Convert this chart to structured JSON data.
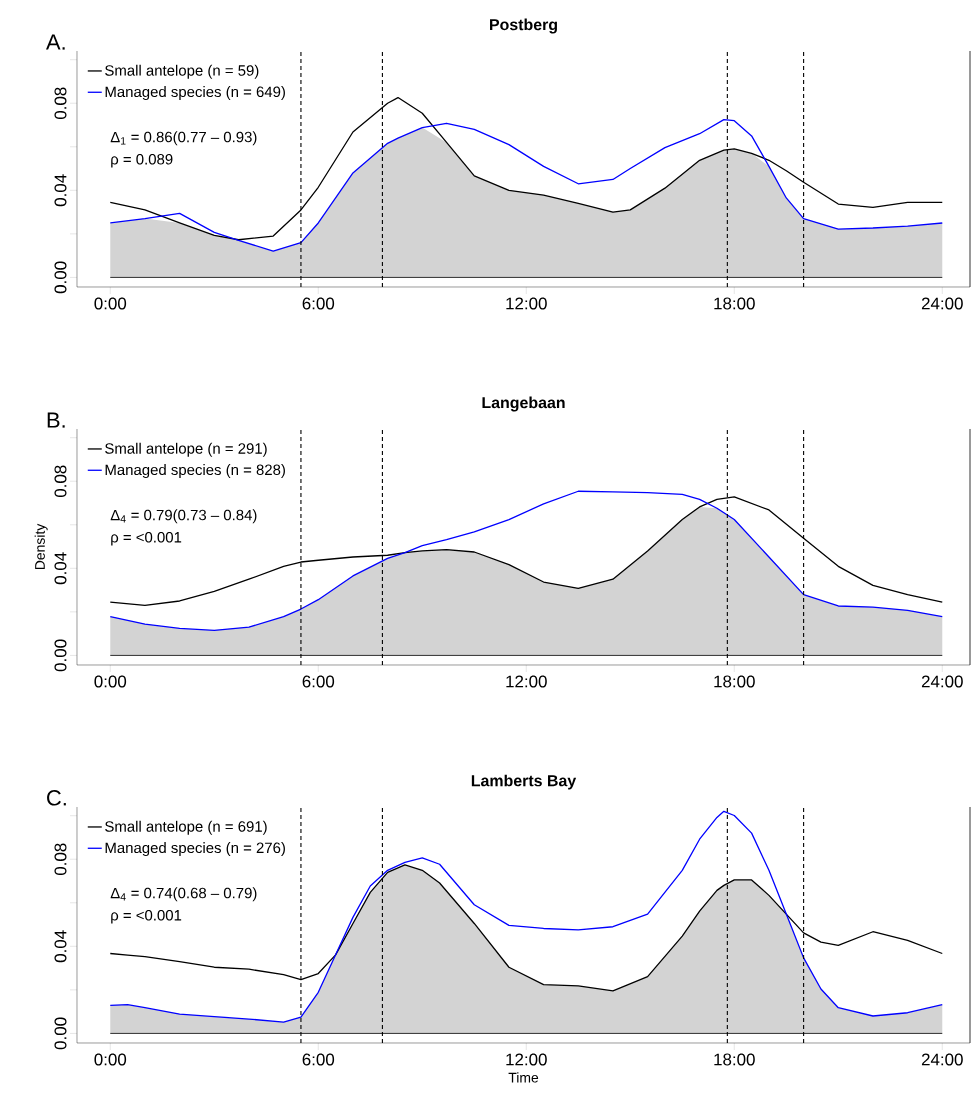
{
  "chart_data": [
    {
      "type": "line",
      "title": "Postberg",
      "annotations": [
        "A.",
        "Δ$_{1}$ = 0.86(0.77 – 0.93)",
        "ρ = 0.089"
      ],
      "legend": "top left",
      "xlim": [
        -0.96,
        24.8
      ],
      "ylim": [
        -0.0044,
        0.104
      ],
      "xticks": [
        {
          "value": 0,
          "label": "0:00"
        },
        {
          "value": 6,
          "label": "6:00"
        },
        {
          "value": 12,
          "label": "12:00"
        },
        {
          "value": 18,
          "label": "18:00"
        },
        {
          "value": 24,
          "label": "24:00"
        }
      ],
      "yticks": [
        {
          "value": 0,
          "label": "0.00"
        },
        {
          "value": 0.02,
          "label": null
        },
        {
          "value": 0.04,
          "label": "0.04"
        },
        {
          "value": 0.06,
          "label": null
        },
        {
          "value": 0.08,
          "label": "0.08"
        },
        {
          "value": 0.1,
          "label": null
        }
      ],
      "ref_lines": [
        {
          "axis": "y",
          "value": 0,
          "color": "#000000",
          "line_style": "solid"
        },
        {
          "axis": "x",
          "value": 5.5,
          "color": "#000000",
          "line_style": "dashed"
        },
        {
          "axis": "x",
          "value": 7.85,
          "color": "#000000",
          "line_style": "dashed"
        },
        {
          "axis": "x",
          "value": 17.8,
          "color": "#000000",
          "line_style": "dashed"
        },
        {
          "axis": "x",
          "value": 20,
          "color": "#000000",
          "line_style": "dashed"
        }
      ],
      "series": [
        {
          "type": "area",
          "color": "#d3d3d3",
          "x": [
            0,
            1,
            2,
            3,
            3.7,
            4.7,
            5.5,
            6,
            7,
            8,
            8.3,
            9,
            9.7,
            10.5,
            11.5,
            12.5,
            13.5,
            14.5,
            15,
            16,
            17,
            17.7,
            18,
            18.5,
            19,
            19.5,
            20,
            21,
            22,
            23,
            24
          ],
          "values": [
            0.025,
            0.027,
            0.025,
            0.0193,
            0.017,
            0.0121,
            0.016,
            0.025,
            0.048,
            0.0616,
            0.064,
            0.0688,
            0.062,
            0.0466,
            0.04,
            0.0378,
            0.034,
            0.03,
            0.031,
            0.041,
            0.0538,
            0.0585,
            0.059,
            0.057,
            0.051,
            0.0365,
            0.027,
            0.0222,
            0.0227,
            0.0236,
            0.025
          ]
        },
        {
          "type": "line",
          "name": "Small antelope (n = 59)",
          "color": "#000000",
          "x": [
            0,
            1,
            2,
            3,
            3.7,
            4.7,
            5.5,
            6,
            7,
            8,
            8.3,
            9,
            9.7,
            10.5,
            11.5,
            12.5,
            13.5,
            14.5,
            15,
            16,
            17,
            17.7,
            18,
            18.5,
            19,
            19.5,
            20,
            21,
            22,
            23,
            24
          ],
          "values": [
            0.0345,
            0.031,
            0.025,
            0.0193,
            0.0173,
            0.019,
            0.031,
            0.0414,
            0.0668,
            0.08,
            0.0826,
            0.0754,
            0.062,
            0.0466,
            0.04,
            0.0378,
            0.034,
            0.03,
            0.031,
            0.041,
            0.0538,
            0.0585,
            0.059,
            0.057,
            0.0538,
            0.049,
            0.0437,
            0.0337,
            0.0322,
            0.0345,
            0.0345
          ]
        },
        {
          "type": "line",
          "name": "Managed species (n = 649)",
          "color": "#0000ff",
          "x": [
            0,
            1,
            2,
            3,
            3.7,
            4.7,
            5.5,
            6,
            7,
            8,
            8.3,
            9,
            9.7,
            10.5,
            11.5,
            12.5,
            13.5,
            14.5,
            15,
            16,
            17,
            17.7,
            18,
            18.5,
            19,
            19.5,
            20,
            21,
            22,
            23,
            24
          ],
          "values": [
            0.025,
            0.027,
            0.0294,
            0.0207,
            0.017,
            0.0121,
            0.016,
            0.025,
            0.048,
            0.0616,
            0.064,
            0.0688,
            0.0708,
            0.068,
            0.061,
            0.051,
            0.043,
            0.045,
            0.05,
            0.0596,
            0.066,
            0.0725,
            0.072,
            0.065,
            0.051,
            0.0365,
            0.027,
            0.0222,
            0.0227,
            0.0236,
            0.025
          ]
        }
      ]
    },
    {
      "type": "line",
      "title": "Langebaan",
      "ylabel": "Density",
      "annotations": [
        "B.",
        "Δ$_{4}$ = 0.79(0.73 – 0.84)",
        "ρ = <0.001"
      ],
      "legend": "top left",
      "xlim": [
        -0.96,
        24.8
      ],
      "ylim": [
        -0.0044,
        0.104
      ],
      "xticks": [
        {
          "value": 0,
          "label": "0:00"
        },
        {
          "value": 6,
          "label": "6:00"
        },
        {
          "value": 12,
          "label": "12:00"
        },
        {
          "value": 18,
          "label": "18:00"
        },
        {
          "value": 24,
          "label": "24:00"
        }
      ],
      "yticks": [
        {
          "value": 0,
          "label": "0.00"
        },
        {
          "value": 0.02,
          "label": null
        },
        {
          "value": 0.04,
          "label": "0.04"
        },
        {
          "value": 0.06,
          "label": null
        },
        {
          "value": 0.08,
          "label": "0.08"
        },
        {
          "value": 0.1,
          "label": null
        }
      ],
      "ref_lines": [
        {
          "axis": "y",
          "value": 0,
          "color": "#000000",
          "line_style": "solid"
        },
        {
          "axis": "x",
          "value": 5.5,
          "color": "#000000",
          "line_style": "dashed"
        },
        {
          "axis": "x",
          "value": 7.85,
          "color": "#000000",
          "line_style": "dashed"
        },
        {
          "axis": "x",
          "value": 17.8,
          "color": "#000000",
          "line_style": "dashed"
        },
        {
          "axis": "x",
          "value": 20,
          "color": "#000000",
          "line_style": "dashed"
        }
      ],
      "series": [
        {
          "type": "area",
          "color": "#d3d3d3",
          "x": [
            0,
            1,
            2,
            3,
            4,
            5,
            5.5,
            6,
            7,
            8,
            8.5,
            9,
            9.7,
            10.5,
            11.5,
            12.5,
            13.5,
            14.5,
            15.5,
            16.5,
            17,
            17.5,
            18,
            19,
            20,
            21,
            22,
            23,
            24
          ],
          "values": [
            0.0178,
            0.0144,
            0.0124,
            0.0115,
            0.013,
            0.0178,
            0.0213,
            0.0256,
            0.0365,
            0.0446,
            0.0472,
            0.048,
            0.0486,
            0.0475,
            0.0417,
            0.0337,
            0.0308,
            0.035,
            0.048,
            0.0624,
            0.0682,
            0.0676,
            0.0624,
            0.0452,
            0.0279,
            0.0227,
            0.0222,
            0.0207,
            0.0178
          ]
        },
        {
          "type": "line",
          "name": "Small antelope (n = 291)",
          "color": "#000000",
          "x": [
            0,
            1,
            2,
            3,
            4,
            5,
            5.5,
            6,
            7,
            8,
            8.5,
            9,
            9.7,
            10.5,
            11.5,
            12.5,
            13.5,
            14.5,
            15.5,
            16.5,
            17,
            17.5,
            18,
            19,
            20,
            21,
            22,
            23,
            24
          ],
          "values": [
            0.0245,
            0.023,
            0.025,
            0.0294,
            0.035,
            0.0409,
            0.0429,
            0.0437,
            0.0452,
            0.046,
            0.0472,
            0.048,
            0.0486,
            0.0475,
            0.0417,
            0.0337,
            0.0308,
            0.035,
            0.048,
            0.0624,
            0.0682,
            0.0717,
            0.0728,
            0.0668,
            0.0538,
            0.0409,
            0.0322,
            0.0279,
            0.0245
          ]
        },
        {
          "type": "line",
          "name": "Managed species (n = 828)",
          "color": "#0000ff",
          "x": [
            0,
            1,
            2,
            3,
            4,
            5,
            5.5,
            6,
            7,
            8,
            8.5,
            9,
            9.7,
            10.5,
            11.5,
            12.5,
            13.5,
            14.5,
            15.5,
            16.5,
            17,
            17.5,
            18,
            19,
            20,
            21,
            22,
            23,
            24
          ],
          "values": [
            0.0178,
            0.0144,
            0.0124,
            0.0115,
            0.013,
            0.0178,
            0.0213,
            0.0256,
            0.0365,
            0.0446,
            0.0472,
            0.0504,
            0.0532,
            0.0567,
            0.0624,
            0.0696,
            0.0754,
            0.0751,
            0.0748,
            0.074,
            0.0717,
            0.0676,
            0.0624,
            0.0452,
            0.0279,
            0.0227,
            0.0222,
            0.0207,
            0.0178
          ]
        }
      ]
    },
    {
      "type": "line",
      "title": "Lamberts Bay",
      "xlabel": "Time",
      "annotations": [
        "C.",
        "Δ$_{4}$ = 0.74(0.68 – 0.79)",
        "ρ = <0.001"
      ],
      "legend": "top left",
      "xlim": [
        -0.96,
        24.8
      ],
      "ylim": [
        -0.0044,
        0.104
      ],
      "xticks": [
        {
          "value": 0,
          "label": "0:00"
        },
        {
          "value": 6,
          "label": "6:00"
        },
        {
          "value": 12,
          "label": "12:00"
        },
        {
          "value": 18,
          "label": "18:00"
        },
        {
          "value": 24,
          "label": "24:00"
        }
      ],
      "yticks": [
        {
          "value": 0,
          "label": "0.00"
        },
        {
          "value": 0.02,
          "label": null
        },
        {
          "value": 0.04,
          "label": "0.04"
        },
        {
          "value": 0.06,
          "label": null
        },
        {
          "value": 0.08,
          "label": "0.08"
        },
        {
          "value": 0.1,
          "label": null
        }
      ],
      "ref_lines": [
        {
          "axis": "y",
          "value": 0,
          "color": "#000000",
          "line_style": "solid"
        },
        {
          "axis": "x",
          "value": 5.5,
          "color": "#000000",
          "line_style": "dashed"
        },
        {
          "axis": "x",
          "value": 7.85,
          "color": "#000000",
          "line_style": "dashed"
        },
        {
          "axis": "x",
          "value": 17.8,
          "color": "#000000",
          "line_style": "dashed"
        },
        {
          "axis": "x",
          "value": 20,
          "color": "#000000",
          "line_style": "dashed"
        }
      ],
      "series": [
        {
          "type": "area",
          "color": "#d3d3d3",
          "x": [
            0,
            0.5,
            1,
            2,
            3,
            4,
            5,
            5.5,
            6,
            6.5,
            7,
            7.5,
            8,
            8.5,
            9,
            9.5,
            10.5,
            11.5,
            12.5,
            13.5,
            14.5,
            15.5,
            16.5,
            17,
            17.5,
            17.7,
            18,
            18.5,
            19,
            19.5,
            20,
            20.5,
            21,
            22,
            23,
            24
          ],
          "values": [
            0.0129,
            0.0132,
            0.0118,
            0.0089,
            0.0077,
            0.0066,
            0.0052,
            0.0075,
            0.0189,
            0.0361,
            0.0505,
            0.0648,
            0.074,
            0.0774,
            0.0749,
            0.0691,
            0.0505,
            0.0304,
            0.0224,
            0.0218,
            0.0195,
            0.0261,
            0.0447,
            0.0562,
            0.0657,
            0.068,
            0.0705,
            0.0705,
            0.0634,
            0.0548,
            0.0347,
            0.0204,
            0.0118,
            0.008,
            0.0095,
            0.0132
          ]
        },
        {
          "type": "line",
          "name": "Small antelope (n = 691)",
          "color": "#000000",
          "x": [
            0,
            0.5,
            1,
            2,
            3,
            4,
            5,
            5.5,
            6,
            6.5,
            7,
            7.5,
            8,
            8.5,
            9,
            9.5,
            10.5,
            11.5,
            12.5,
            13.5,
            14.5,
            15.5,
            16.5,
            17,
            17.5,
            17.7,
            18,
            18.5,
            19,
            19.5,
            20,
            20.5,
            21,
            22,
            23,
            24
          ],
          "values": [
            0.0367,
            0.036,
            0.0353,
            0.033,
            0.0304,
            0.0295,
            0.027,
            0.0247,
            0.0275,
            0.0361,
            0.0505,
            0.0648,
            0.074,
            0.0774,
            0.0749,
            0.0691,
            0.0505,
            0.0304,
            0.0224,
            0.0218,
            0.0195,
            0.0261,
            0.0447,
            0.0562,
            0.0657,
            0.068,
            0.0705,
            0.0705,
            0.0634,
            0.0548,
            0.0462,
            0.0419,
            0.0404,
            0.0467,
            0.0427,
            0.0367
          ]
        },
        {
          "type": "line",
          "name": "Managed species (n = 276)",
          "color": "#0000ff",
          "x": [
            0,
            0.5,
            1,
            2,
            3,
            4,
            5,
            5.5,
            6,
            6.5,
            7,
            7.5,
            8,
            8.5,
            9,
            9.5,
            10.5,
            11.5,
            12.5,
            13.5,
            14.5,
            15.5,
            16.5,
            17,
            17.5,
            17.7,
            18,
            18.5,
            19,
            19.5,
            20,
            20.5,
            21,
            22,
            23,
            24
          ],
          "values": [
            0.0129,
            0.0132,
            0.0118,
            0.0089,
            0.0077,
            0.0066,
            0.0052,
            0.0075,
            0.0189,
            0.0361,
            0.0533,
            0.0677,
            0.0749,
            0.0786,
            0.0806,
            0.0777,
            0.0591,
            0.0496,
            0.0482,
            0.0476,
            0.049,
            0.0548,
            0.0749,
            0.0892,
            0.0992,
            0.102,
            0.1001,
            0.092,
            0.0749,
            0.0548,
            0.0347,
            0.0204,
            0.0118,
            0.008,
            0.0095,
            0.0132
          ]
        }
      ]
    }
  ]
}
